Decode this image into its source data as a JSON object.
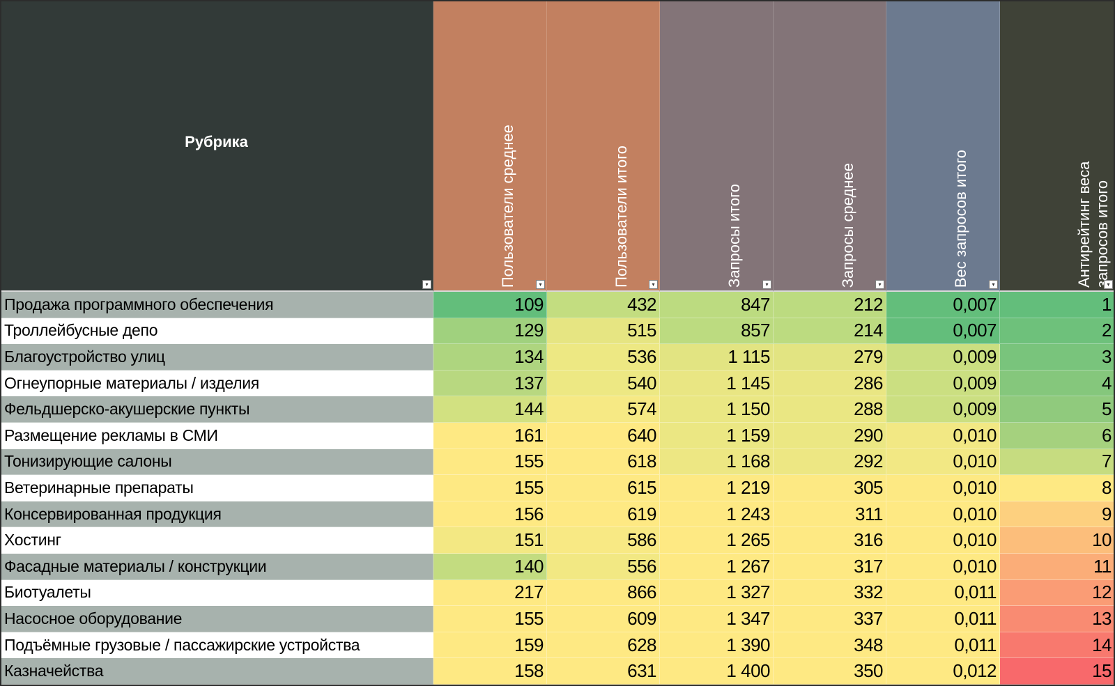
{
  "header": {
    "rubric": "Рубрика",
    "columns": [
      "Пользователи среднее",
      "Пользователи итого",
      "Запросы итого",
      "Запросы среднее",
      "Вес запросов итого",
      "Антирейтинг веса запросов итого"
    ],
    "colors": [
      "#c28060",
      "#c28060",
      "#837478",
      "#837478",
      "#6c7a8f",
      "#3f4237"
    ],
    "rubric_color": "#323a38"
  },
  "rows": [
    {
      "name": "Продажа программного обеспечения",
      "vals": [
        "109",
        "432",
        "847",
        "212",
        "0,007",
        "1"
      ],
      "colors": [
        "#63be7b",
        "#c3dd80",
        "#bcdb80",
        "#bcdb80",
        "#63be7b",
        "#63be7b"
      ]
    },
    {
      "name": "Троллейбусные депо",
      "vals": [
        "129",
        "515",
        "857",
        "214",
        "0,007",
        "2"
      ],
      "colors": [
        "#a0d17e",
        "#e6e582",
        "#bcdb80",
        "#bcdb80",
        "#63be7b",
        "#6ec17b"
      ]
    },
    {
      "name": "Благоустройство улиц",
      "vals": [
        "134",
        "536",
        "1 115",
        "279",
        "0,009",
        "3"
      ],
      "colors": [
        "#aed57f",
        "#ede883",
        "#e2e482",
        "#e2e482",
        "#cbdf81",
        "#79c47c"
      ]
    },
    {
      "name": "Огнеупорные материалы / изделия",
      "vals": [
        "137",
        "540",
        "1 145",
        "286",
        "0,009",
        "4"
      ],
      "colors": [
        "#b8d880",
        "#ede883",
        "#e9e683",
        "#e9e683",
        "#cbdf81",
        "#85c77c"
      ]
    },
    {
      "name": "Фельдшерско-акушерские пункты",
      "vals": [
        "144",
        "574",
        "1 150",
        "288",
        "0,009",
        "5"
      ],
      "colors": [
        "#d2e181",
        "#f6e984",
        "#eae783",
        "#eae783",
        "#cbdf81",
        "#90ca7d"
      ]
    },
    {
      "name": "Размещение рекламы в СМИ",
      "vals": [
        "161",
        "640",
        "1 159",
        "290",
        "0,010",
        "6"
      ],
      "colors": [
        "#fee983",
        "#fee983",
        "#ebe783",
        "#ebe783",
        "#f2e884",
        "#a5d17e"
      ]
    },
    {
      "name": "Тонизирующие салоны",
      "vals": [
        "155",
        "618",
        "1 168",
        "292",
        "0,010",
        "7"
      ],
      "colors": [
        "#fee983",
        "#fee983",
        "#ede783",
        "#ede783",
        "#f2e884",
        "#c6dc80"
      ]
    },
    {
      "name": "Ветеринарные препараты",
      "vals": [
        "155",
        "615",
        "1 219",
        "305",
        "0,010",
        "8"
      ],
      "colors": [
        "#fee983",
        "#fee983",
        "#fde983",
        "#fde983",
        "#fde983",
        "#fee983"
      ]
    },
    {
      "name": "Консервированная продукция",
      "vals": [
        "156",
        "619",
        "1 243",
        "311",
        "0,010",
        "9"
      ],
      "colors": [
        "#fee983",
        "#fee983",
        "#fee983",
        "#fee983",
        "#fee983",
        "#fdd07f"
      ]
    },
    {
      "name": "Хостинг",
      "vals": [
        "151",
        "586",
        "1 265",
        "316",
        "0,010",
        "10"
      ],
      "colors": [
        "#f3e883",
        "#f8e984",
        "#fee983",
        "#fee983",
        "#fee983",
        "#fcbe7b"
      ]
    },
    {
      "name": "Фасадные материалы / конструкции",
      "vals": [
        "140",
        "556",
        "1 267",
        "317",
        "0,010",
        "11"
      ],
      "colors": [
        "#c3dc80",
        "#f2e883",
        "#fee983",
        "#fee983",
        "#fee983",
        "#fbad78"
      ]
    },
    {
      "name": "Биотуалеты",
      "vals": [
        "217",
        "866",
        "1 327",
        "332",
        "0,011",
        "12"
      ],
      "colors": [
        "#fee983",
        "#fee983",
        "#fee983",
        "#fee983",
        "#fee983",
        "#fa9c75"
      ]
    },
    {
      "name": "Насосное оборудование",
      "vals": [
        "155",
        "609",
        "1 347",
        "337",
        "0,011",
        "13"
      ],
      "colors": [
        "#fee983",
        "#fee983",
        "#fee983",
        "#fee983",
        "#fee983",
        "#f98b72"
      ]
    },
    {
      "name": "Подъёмные грузовые / пассажирские устройства",
      "vals": [
        "159",
        "628",
        "1 390",
        "348",
        "0,011",
        "14"
      ],
      "colors": [
        "#fee983",
        "#fee983",
        "#fee983",
        "#fee983",
        "#fee983",
        "#f8796e"
      ]
    },
    {
      "name": "Казначейства",
      "vals": [
        "158",
        "631",
        "1 400",
        "350",
        "0,012",
        "15"
      ],
      "colors": [
        "#fee983",
        "#fee983",
        "#fee983",
        "#fee983",
        "#fee983",
        "#f8696b"
      ]
    }
  ],
  "icons": {
    "filter": "filter-dropdown-icon"
  }
}
